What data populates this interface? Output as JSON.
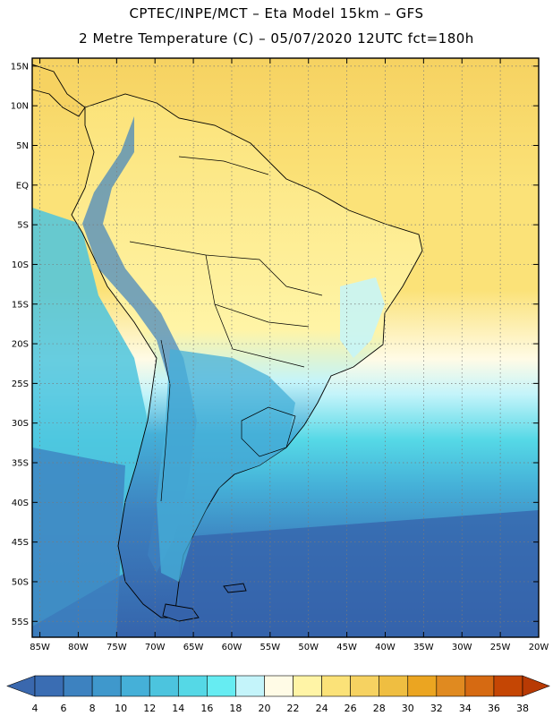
{
  "header": {
    "title_line1": "CPTEC/INPE/MCT –  Eta Model 15km – GFS",
    "title_line2": "2 Metre Temperature (C) – 05/07/2020 12UTC fct=180h"
  },
  "map": {
    "lon_range": [
      -86,
      -20
    ],
    "lat_range": [
      -57,
      16
    ],
    "lon_ticks": [
      {
        "value": -85,
        "label": "85W"
      },
      {
        "value": -80,
        "label": "80W"
      },
      {
        "value": -75,
        "label": "75W"
      },
      {
        "value": -70,
        "label": "70W"
      },
      {
        "value": -65,
        "label": "65W"
      },
      {
        "value": -60,
        "label": "60W"
      },
      {
        "value": -55,
        "label": "55W"
      },
      {
        "value": -50,
        "label": "50W"
      },
      {
        "value": -45,
        "label": "45W"
      },
      {
        "value": -40,
        "label": "40W"
      },
      {
        "value": -35,
        "label": "35W"
      },
      {
        "value": -30,
        "label": "30W"
      },
      {
        "value": -25,
        "label": "25W"
      },
      {
        "value": -20,
        "label": "20W"
      }
    ],
    "lat_ticks": [
      {
        "value": 15,
        "label": "15N"
      },
      {
        "value": 10,
        "label": "10N"
      },
      {
        "value": 5,
        "label": "5N"
      },
      {
        "value": 0,
        "label": "EQ"
      },
      {
        "value": -5,
        "label": "5S"
      },
      {
        "value": -10,
        "label": "10S"
      },
      {
        "value": -15,
        "label": "15S"
      },
      {
        "value": -20,
        "label": "20S"
      },
      {
        "value": -25,
        "label": "25S"
      },
      {
        "value": -30,
        "label": "30S"
      },
      {
        "value": -35,
        "label": "35S"
      },
      {
        "value": -40,
        "label": "40S"
      },
      {
        "value": -45,
        "label": "45S"
      },
      {
        "value": -50,
        "label": "50S"
      },
      {
        "value": -55,
        "label": "55S"
      }
    ]
  },
  "colorbar": {
    "labels": [
      "4",
      "6",
      "8",
      "10",
      "12",
      "14",
      "16",
      "18",
      "20",
      "22",
      "24",
      "26",
      "28",
      "30",
      "32",
      "34",
      "36",
      "38"
    ],
    "colors": [
      "#3a6db3",
      "#3d82c0",
      "#3f98cc",
      "#45b0d8",
      "#4cc4de",
      "#55d8e6",
      "#66ecf2",
      "#c4f4fa",
      "#fffbe6",
      "#fff4a6",
      "#fbe278",
      "#f6d261",
      "#efbe41",
      "#eba521",
      "#e08a20",
      "#d66a12",
      "#c54604"
    ],
    "under_color": "#3a68ae",
    "over_color": "#b83a04"
  }
}
